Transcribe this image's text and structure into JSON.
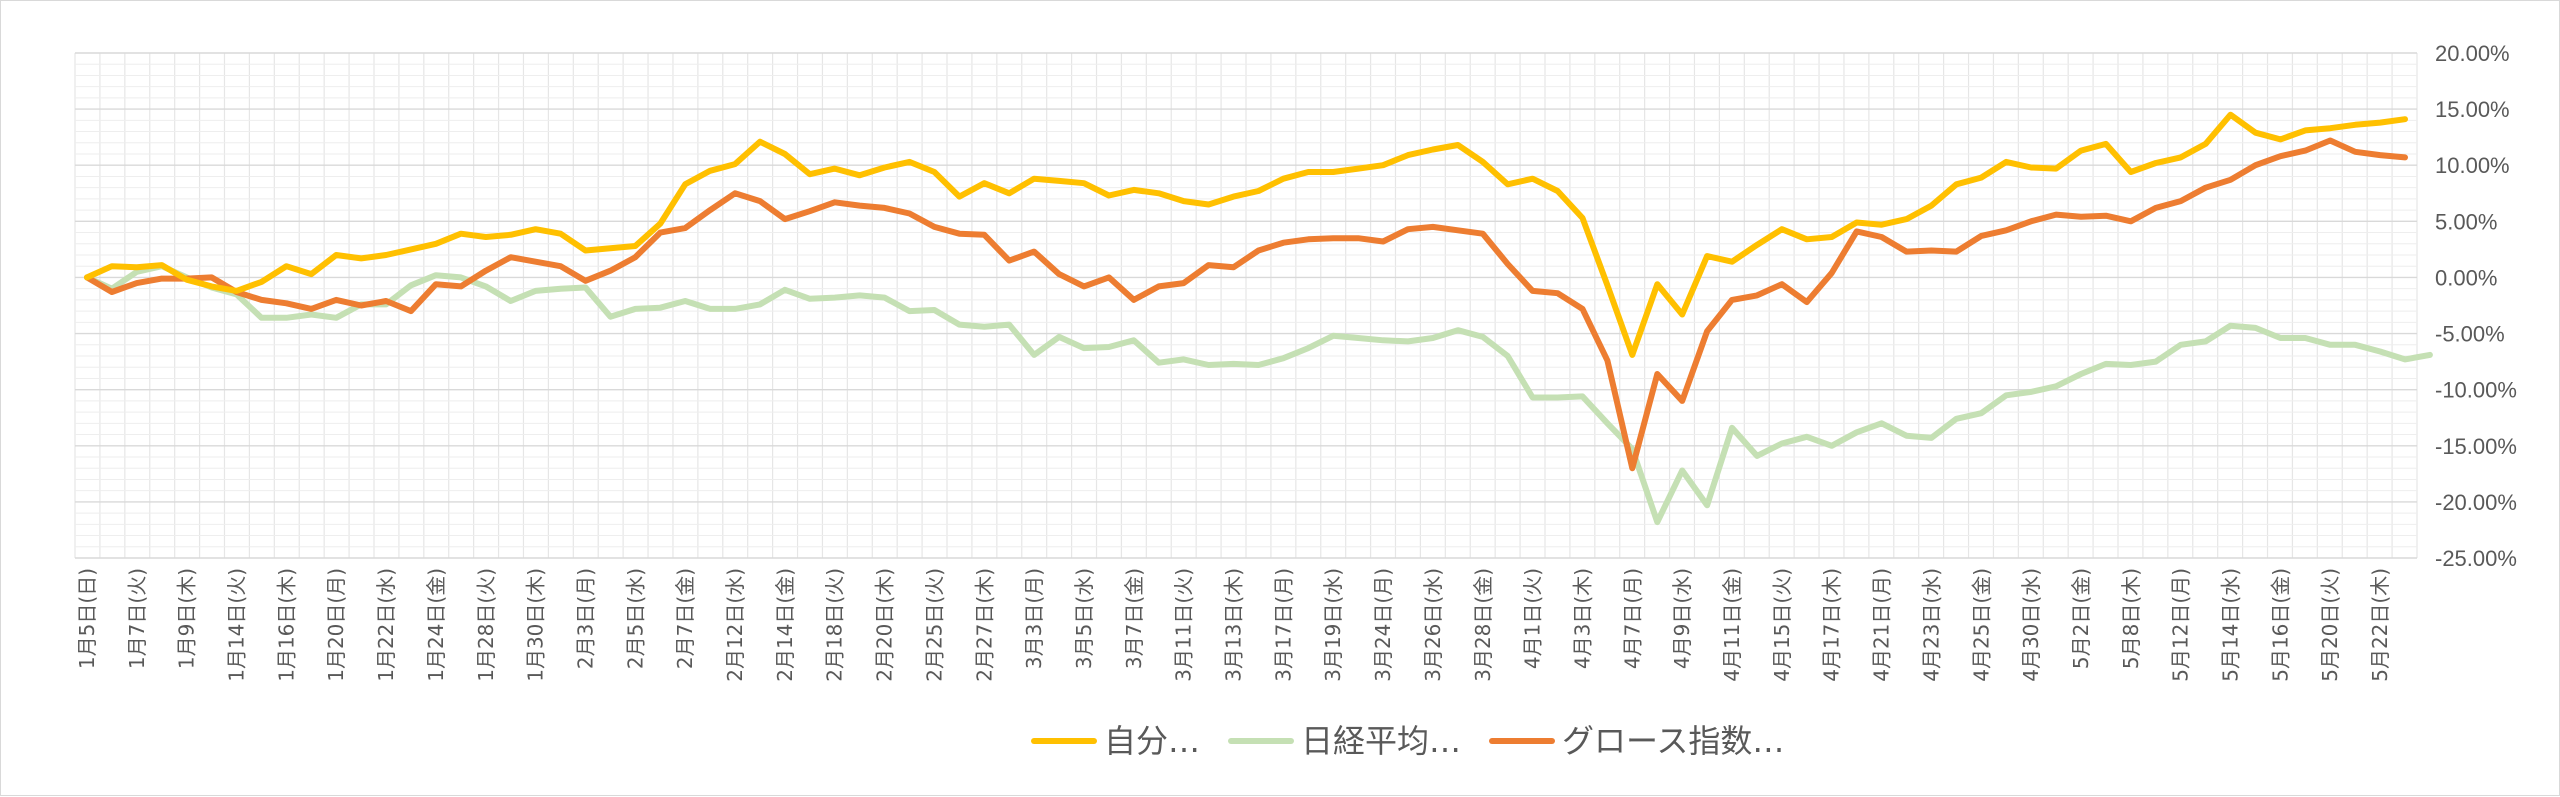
{
  "chart_data": {
    "type": "line",
    "title": "",
    "xlabel": "",
    "ylabel": "",
    "ylim": [
      -25,
      20
    ],
    "y_axis_side": "right",
    "y_ticks": [
      "20.00%",
      "15.00%",
      "10.00%",
      "5.00%",
      "0.00%",
      "-5.00%",
      "-10.00%",
      "-15.00%",
      "-20.00%",
      "-25.00%"
    ],
    "legend_position": "bottom",
    "grid": true,
    "x_tick_labels": [
      "1月5日(日)",
      "1月7日(火)",
      "1月9日(木)",
      "1月14日(火)",
      "1月16日(木)",
      "1月20日(月)",
      "1月22日(水)",
      "1月24日(金)",
      "1月28日(火)",
      "1月30日(木)",
      "2月3日(月)",
      "2月5日(水)",
      "2月7日(金)",
      "2月12日(水)",
      "2月14日(金)",
      "2月18日(火)",
      "2月20日(木)",
      "2月25日(火)",
      "2月27日(木)",
      "3月3日(月)",
      "3月5日(水)",
      "3月7日(金)",
      "3月11日(火)",
      "3月13日(木)",
      "3月17日(月)",
      "3月19日(水)",
      "3月24日(月)",
      "3月26日(水)",
      "3月28日(金)",
      "4月1日(火)",
      "4月3日(木)",
      "4月7日(月)",
      "4月9日(水)",
      "4月11日(金)",
      "4月15日(火)",
      "4月17日(木)",
      "4月21日(月)",
      "4月23日(水)",
      "4月25日(金)",
      "4月30日(水)",
      "5月2日(金)",
      "5月8日(木)",
      "5月12日(月)",
      "5月14日(水)",
      "5月16日(金)",
      "5月20日(火)",
      "5月22日(木)"
    ],
    "series": [
      {
        "name": "自分…",
        "color": "#FFC000",
        "values": [
          0,
          1.0,
          0.9,
          1.1,
          -0.2,
          -0.8,
          -1.2,
          -0.4,
          1.0,
          0.3,
          2.0,
          1.7,
          2.0,
          2.5,
          3.0,
          3.9,
          3.6,
          3.8,
          4.3,
          3.9,
          2.4,
          2.6,
          2.8,
          4.8,
          8.3,
          9.5,
          10.1,
          12.1,
          11.0,
          9.2,
          9.7,
          9.1,
          9.8,
          10.3,
          9.4,
          7.2,
          8.4,
          7.5,
          8.8,
          8.6,
          8.4,
          7.3,
          7.8,
          7.5,
          6.8,
          6.5,
          7.2,
          7.7,
          8.8,
          9.4,
          9.4,
          9.7,
          10.0,
          10.9,
          11.4,
          11.8,
          10.3,
          8.3,
          8.8,
          7.7,
          5.3,
          -0.7,
          -6.9,
          -0.6,
          -3.3,
          1.9,
          1.4,
          2.9,
          4.3,
          3.4,
          3.6,
          4.9,
          4.7,
          5.2,
          6.4,
          8.3,
          8.9,
          10.3,
          9.8,
          9.7,
          11.3,
          11.9,
          9.4,
          10.2,
          10.7,
          11.9,
          14.5,
          12.9,
          12.3,
          13.1,
          13.3,
          13.6,
          13.8,
          14.1
        ]
      },
      {
        "name": "日経平均…",
        "color": "#C5E0B4",
        "values": [
          0,
          -1.0,
          0.5,
          1.0,
          0.0,
          -0.9,
          -1.5,
          -3.6,
          -3.6,
          -3.3,
          -3.6,
          -2.4,
          -2.4,
          -0.7,
          0.2,
          0.0,
          -0.8,
          -2.1,
          -1.2,
          -1.0,
          -0.9,
          -3.5,
          -2.8,
          -2.7,
          -2.1,
          -2.8,
          -2.8,
          -2.4,
          -1.1,
          -1.9,
          -1.8,
          -1.6,
          -1.8,
          -3.0,
          -2.9,
          -4.2,
          -4.4,
          -4.2,
          -6.9,
          -5.3,
          -6.3,
          -6.2,
          -5.6,
          -7.6,
          -7.3,
          -7.8,
          -7.7,
          -7.8,
          -7.2,
          -6.3,
          -5.2,
          -5.4,
          -5.6,
          -5.7,
          -5.4,
          -4.7,
          -5.3,
          -7.0,
          -10.7,
          -10.7,
          -10.6,
          -13.0,
          -15.3,
          -21.8,
          -17.2,
          -20.3,
          -13.4,
          -15.9,
          -14.8,
          -14.2,
          -15.0,
          -13.8,
          -13.0,
          -14.1,
          -14.3,
          -12.6,
          -12.1,
          -10.5,
          -10.2,
          -9.7,
          -8.6,
          -7.7,
          -7.8,
          -7.5,
          -6.0,
          -5.7,
          -4.3,
          -4.5,
          -5.4,
          -5.4,
          -6.0,
          -6.0,
          -6.6,
          -7.3,
          -6.9
        ]
      },
      {
        "name": "グロース指数…",
        "color": "#ED7D31",
        "values": [
          0,
          -1.3,
          -0.5,
          -0.1,
          -0.1,
          0.0,
          -1.3,
          -2.0,
          -2.3,
          -2.8,
          -2.0,
          -2.5,
          -2.1,
          -3.0,
          -0.6,
          -0.8,
          0.6,
          1.8,
          1.4,
          1.0,
          -0.3,
          0.6,
          1.8,
          4.0,
          4.4,
          6.0,
          7.5,
          6.8,
          5.2,
          5.9,
          6.7,
          6.4,
          6.2,
          5.7,
          4.5,
          3.9,
          3.8,
          1.5,
          2.3,
          0.3,
          -0.8,
          0.0,
          -2.0,
          -0.8,
          -0.5,
          1.1,
          0.9,
          2.4,
          3.1,
          3.4,
          3.5,
          3.5,
          3.2,
          4.3,
          4.5,
          4.2,
          3.9,
          1.2,
          -1.2,
          -1.4,
          -2.8,
          -7.4,
          -17.0,
          -8.6,
          -11.0,
          -4.8,
          -2.0,
          -1.6,
          -0.6,
          -2.2,
          0.4,
          4.1,
          3.6,
          2.3,
          2.4,
          2.3,
          3.7,
          4.2,
          5.0,
          5.6,
          5.4,
          5.5,
          5.0,
          6.2,
          6.8,
          8.0,
          8.7,
          10.0,
          10.8,
          11.3,
          12.2,
          11.2,
          10.9,
          10.7
        ]
      }
    ]
  }
}
